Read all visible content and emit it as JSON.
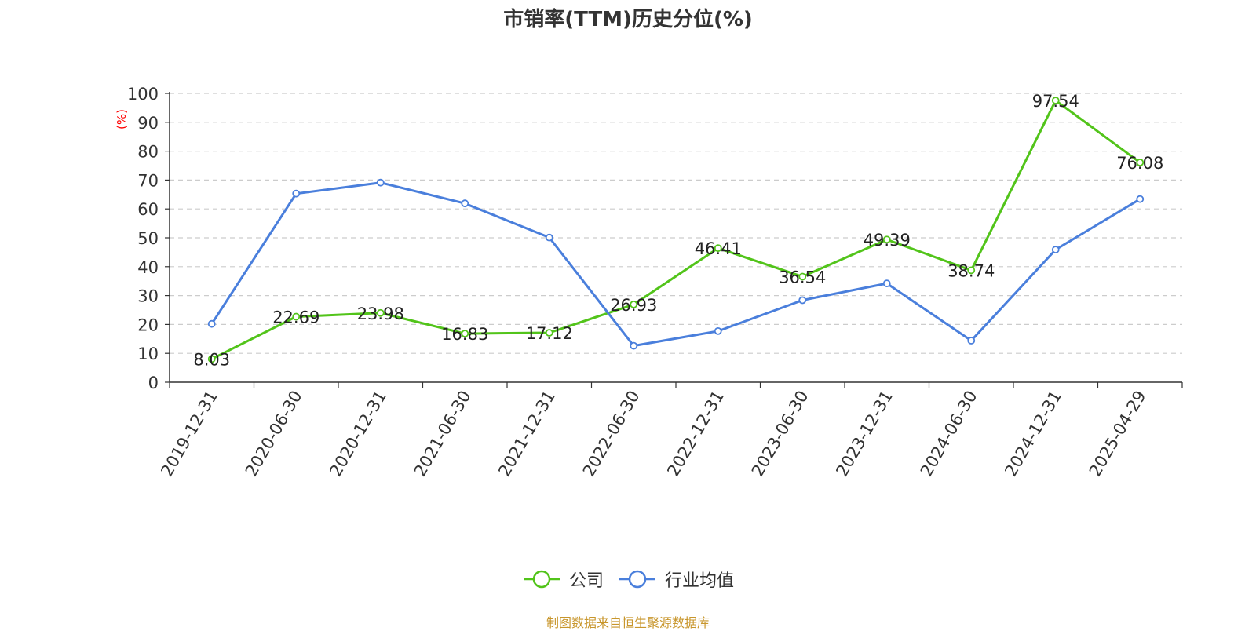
{
  "chart_data": {
    "type": "line",
    "title": "市销率(TTM)历史分位(%)",
    "ylabel": "(%)",
    "ylim": [
      0,
      100
    ],
    "yticks": [
      0,
      10,
      20,
      30,
      40,
      50,
      60,
      70,
      80,
      90,
      100
    ],
    "categories": [
      "2019-12-31",
      "2020-06-30",
      "2020-12-31",
      "2021-06-30",
      "2021-12-31",
      "2022-06-30",
      "2022-12-31",
      "2023-06-30",
      "2023-12-31",
      "2024-06-30",
      "2024-12-31",
      "2025-04-29"
    ],
    "grid": true,
    "legend_position": "bottom-center",
    "series": [
      {
        "name": "公司",
        "color": "#52c41a",
        "values": [
          8.03,
          22.69,
          23.98,
          16.83,
          17.12,
          26.93,
          46.41,
          36.54,
          49.39,
          38.74,
          97.54,
          76.08
        ],
        "labels": [
          "8.03",
          "22.69",
          "23.98",
          "16.83",
          "17.12",
          "26.93",
          "46.41",
          "36.54",
          "49.39",
          "38.74",
          "97.54",
          "76.08"
        ]
      },
      {
        "name": "行业均值",
        "color": "#4a7fdc",
        "values": [
          20.2,
          65.3,
          69.1,
          61.9,
          50.1,
          12.6,
          17.7,
          28.4,
          34.2,
          14.4,
          45.9,
          63.4
        ]
      }
    ]
  },
  "footer": {
    "source": "制图数据来自恒生聚源数据库"
  }
}
